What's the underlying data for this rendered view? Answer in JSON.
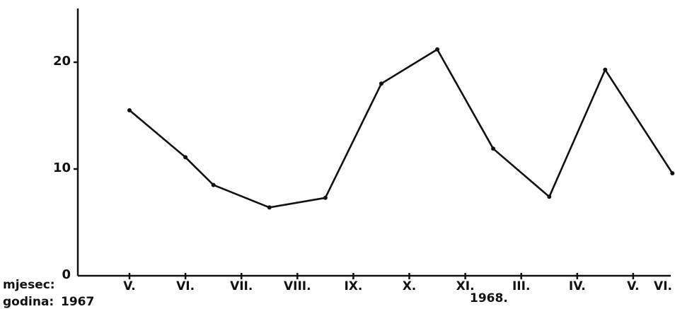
{
  "chart_data": {
    "type": "line",
    "title": "",
    "xlabel": "",
    "ylabel": "",
    "ylim": [
      0,
      25
    ],
    "y_ticks": [
      0,
      10,
      20
    ],
    "grid": false,
    "legend": "none",
    "color": "#111111",
    "month_row_label": "mjesec:",
    "year_row_label": "godina:",
    "years": [
      "1967",
      "1968."
    ],
    "month_ticks": [
      "V.",
      "VI.",
      "VII.",
      "VIII.",
      "IX.",
      "X.",
      "XI.",
      "III.",
      "IV.",
      "V.",
      "VI."
    ],
    "series": [
      {
        "points": [
          {
            "x": 0.0,
            "y": 15.5
          },
          {
            "x": 1.0,
            "y": 11.1
          },
          {
            "x": 1.5,
            "y": 8.5
          },
          {
            "x": 2.5,
            "y": 6.4
          },
          {
            "x": 3.5,
            "y": 7.3
          },
          {
            "x": 4.5,
            "y": 18.0
          },
          {
            "x": 5.5,
            "y": 21.2
          },
          {
            "x": 6.5,
            "y": 11.9
          },
          {
            "x": 7.5,
            "y": 7.4
          },
          {
            "x": 8.5,
            "y": 19.3
          },
          {
            "x": 9.7,
            "y": 9.6
          }
        ]
      }
    ]
  }
}
